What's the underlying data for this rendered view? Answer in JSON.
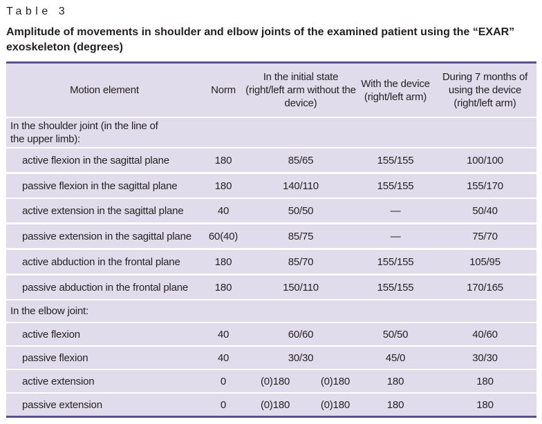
{
  "table_label": "Table 3",
  "caption": "Amplitude of movements in shoulder and elbow joints of the examined patient using the “EXAR” exoskeleton (degrees)",
  "headers": {
    "motion": "Motion element",
    "norm": "Norm",
    "initial": "In the initial state (right/left arm without the device)",
    "device": "With the device (right/left arm)",
    "seven_months": "During 7 months of using the device (right/left arm)"
  },
  "sections": {
    "shoulder": "In the shoulder joint (in the line of the upper limb):",
    "elbow": "In the elbow joint:"
  },
  "rows": [
    {
      "motion": "active flexion in the sagittal plane",
      "norm": "180",
      "initial": "85/65",
      "device": "155/155",
      "months": "100/100"
    },
    {
      "motion": "passive flexion in the sagittal plane",
      "norm": "180",
      "initial": "140/110",
      "device": "155/155",
      "months": "155/170"
    },
    {
      "motion": "active extension in the sagittal plane",
      "norm": "40",
      "initial": "50/50",
      "device": "—",
      "months": "50/40"
    },
    {
      "motion": "passive extension in the sagittal plane",
      "norm": "60(40)",
      "initial": "85/75",
      "device": "—",
      "months": "75/70"
    },
    {
      "motion": "active abduction in the frontal plane",
      "norm": "180",
      "initial": "85/70",
      "device": "155/155",
      "months": "105/95"
    },
    {
      "motion": "passive abduction in the frontal plane",
      "norm": "180",
      "initial": "150/110",
      "device": "155/155",
      "months": "170/165"
    },
    {
      "motion": "active flexion",
      "norm": "40",
      "initial": "60/60",
      "device": "50/50",
      "months": "40/60"
    },
    {
      "motion": "passive flexion",
      "norm": "40",
      "initial": "30/30",
      "device": "45/0",
      "months": "30/30"
    },
    {
      "motion": "active extension",
      "norm": "0",
      "initial_a": "(0)180",
      "initial_b": "(0)180",
      "device": "180",
      "months": "180"
    },
    {
      "motion": "passive extension",
      "norm": "0",
      "initial_a": "(0)180",
      "initial_b": "(0)180",
      "device": "180",
      "months": "180"
    }
  ]
}
